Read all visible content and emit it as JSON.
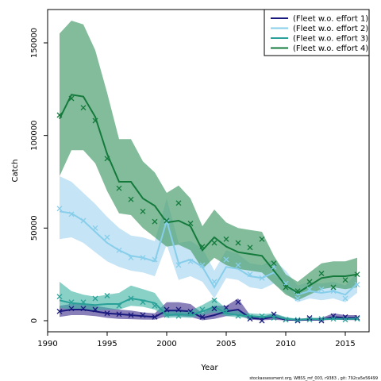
{
  "chart_data": {
    "type": "line",
    "xlabel": "Year",
    "ylabel": "Catch",
    "xlim": [
      1990,
      2017
    ],
    "ylim": [
      -6000,
      168000
    ],
    "xticks": [
      1990,
      1995,
      2000,
      2005,
      2010,
      2015
    ],
    "yticks": [
      0,
      50000,
      100000,
      150000
    ],
    "legend_position": "top-right",
    "footer_text": "stockassessment.org, WBSS_mf_003, r9383 , git: 792ca5e56499",
    "series": [
      {
        "name": "(Fleet w.o. effort 1)",
        "color": "#1a1a7e",
        "band_color": "#3b2a8a",
        "x": [
          1991,
          1992,
          1993,
          1994,
          1995,
          1996,
          1997,
          1998,
          1999,
          2000,
          2001,
          2002,
          2003,
          2004,
          2005,
          2006,
          2007,
          2008,
          2009,
          2010,
          2011,
          2012,
          2013,
          2014,
          2015,
          2016
        ],
        "fit": [
          5000,
          6000,
          6000,
          5000,
          4000,
          3500,
          3000,
          2500,
          2000,
          5500,
          5500,
          5000,
          1500,
          3000,
          5000,
          6000,
          1500,
          1000,
          2000,
          500,
          300,
          500,
          500,
          2000,
          1500,
          1500
        ],
        "lower": [
          2000,
          3000,
          3000,
          2500,
          1500,
          1000,
          800,
          600,
          500,
          2500,
          2500,
          2000,
          200,
          1000,
          2500,
          3000,
          500,
          200,
          500,
          100,
          50,
          100,
          100,
          500,
          300,
          300
        ],
        "upper": [
          8000,
          9000,
          9000,
          8000,
          7000,
          6000,
          5500,
          4500,
          4000,
          10000,
          10000,
          9000,
          4000,
          8000,
          8000,
          12000,
          3000,
          2000,
          4000,
          1500,
          1000,
          1500,
          1500,
          4000,
          3000,
          3000
        ],
        "obs": [
          5000,
          6500,
          6500,
          6000,
          4000,
          3500,
          3000,
          3000,
          2000,
          6000,
          6000,
          5000,
          2000,
          6500,
          7000,
          10000,
          1000,
          0,
          3500,
          500,
          0,
          1500,
          0,
          2500,
          2000,
          1500
        ]
      },
      {
        "name": "(Fleet w.o. effort 2)",
        "color": "#87ceeb",
        "band_color": "#9fd2ee",
        "x": [
          1991,
          1992,
          1993,
          1994,
          1995,
          1996,
          1997,
          1998,
          1999,
          2000,
          2001,
          2002,
          2003,
          2004,
          2005,
          2006,
          2007,
          2008,
          2009,
          2010,
          2011,
          2012,
          2013,
          2014,
          2015,
          2016
        ],
        "fit": [
          59000,
          58000,
          54000,
          48000,
          42000,
          38000,
          35000,
          34000,
          32000,
          54000,
          31000,
          33000,
          29000,
          18000,
          29000,
          28000,
          24000,
          23000,
          26000,
          20000,
          14000,
          16000,
          15000,
          16000,
          14000,
          20000
        ],
        "lower": [
          44000,
          45000,
          42000,
          37000,
          32000,
          29000,
          27000,
          26000,
          24000,
          41000,
          22000,
          24000,
          21000,
          12000,
          23000,
          22000,
          18000,
          17000,
          20000,
          15000,
          10000,
          12000,
          11000,
          12000,
          10000,
          15000
        ],
        "upper": [
          78000,
          75000,
          69000,
          63000,
          56000,
          50000,
          46000,
          45000,
          43000,
          66000,
          42000,
          43000,
          39000,
          27000,
          38000,
          36000,
          31000,
          30000,
          33000,
          27000,
          19000,
          21000,
          20000,
          21000,
          19000,
          26000
        ],
        "obs": [
          60500,
          57500,
          54000,
          50000,
          45000,
          38000,
          34000,
          34000,
          33000,
          53000,
          30000,
          32000,
          30000,
          21000,
          33000,
          30000,
          25000,
          23000,
          29000,
          20000,
          12000,
          17000,
          17000,
          16000,
          12000,
          19500
        ]
      },
      {
        "name": "(Fleet w.o. effort 3)",
        "color": "#2aa198",
        "band_color": "#3ab0a2",
        "x": [
          1991,
          1992,
          1993,
          1994,
          1995,
          1996,
          1997,
          1998,
          1999,
          2000,
          2001,
          2002,
          2003,
          2004,
          2005,
          2006,
          2007,
          2008,
          2009,
          2010,
          2011,
          2012,
          2013,
          2014,
          2015,
          2016
        ],
        "fit": [
          11000,
          9500,
          9000,
          8500,
          9000,
          9000,
          12000,
          11000,
          9500,
          3000,
          3500,
          3000,
          5000,
          7500,
          4000,
          3000,
          2500,
          2000,
          2500,
          1000,
          500,
          800,
          800,
          1000,
          1000,
          1000
        ],
        "lower": [
          7000,
          6000,
          5500,
          5500,
          6000,
          6000,
          8000,
          7500,
          6000,
          1500,
          1800,
          1500,
          3000,
          4500,
          2500,
          1800,
          1500,
          1000,
          1500,
          500,
          200,
          400,
          400,
          500,
          500,
          500
        ],
        "upper": [
          21000,
          16000,
          14000,
          13000,
          14000,
          15000,
          19000,
          17000,
          15000,
          6000,
          6000,
          5500,
          8500,
          12000,
          6500,
          5000,
          4000,
          3500,
          4000,
          2000,
          1000,
          1500,
          1500,
          2000,
          2000,
          2000
        ],
        "obs": [
          13000,
          10000,
          10000,
          12000,
          13500,
          8000,
          12000,
          10000,
          8000,
          3000,
          2500,
          4000,
          6000,
          11000,
          5000,
          2500,
          2000,
          2500,
          1500,
          500,
          500,
          500,
          1000,
          1000,
          500,
          1000
        ]
      },
      {
        "name": "(Fleet w.o. effort 4)",
        "color": "#137a3c",
        "band_color": "#4f9f6f",
        "x": [
          1991,
          1992,
          1993,
          1994,
          1995,
          1996,
          1997,
          1998,
          1999,
          2000,
          2001,
          2002,
          2003,
          2004,
          2005,
          2006,
          2007,
          2008,
          2009,
          2010,
          2011,
          2012,
          2013,
          2014,
          2015,
          2016
        ],
        "fit": [
          109000,
          122000,
          121000,
          110000,
          90000,
          75000,
          75000,
          66000,
          62000,
          53000,
          54000,
          51000,
          38000,
          45000,
          40000,
          37000,
          36000,
          35000,
          27000,
          19000,
          15000,
          19000,
          23000,
          24000,
          24000,
          25000
        ],
        "lower": [
          78000,
          92000,
          92000,
          85000,
          70000,
          58000,
          57000,
          50000,
          45000,
          40000,
          41000,
          38000,
          28000,
          34000,
          30000,
          28000,
          27000,
          26000,
          20000,
          14000,
          11000,
          14000,
          17000,
          18000,
          17000,
          18000
        ],
        "upper": [
          155000,
          162000,
          160000,
          146000,
          123000,
          98000,
          98000,
          86000,
          80000,
          69000,
          73000,
          66000,
          51000,
          60000,
          53000,
          50000,
          49000,
          48000,
          35000,
          25000,
          21000,
          26000,
          31000,
          32000,
          32000,
          34000
        ],
        "obs": [
          111000,
          120000,
          115000,
          108000,
          87500,
          71500,
          65500,
          59000,
          53500,
          54000,
          63500,
          52500,
          40000,
          42000,
          44000,
          42000,
          39500,
          44000,
          31000,
          18000,
          16000,
          21000,
          25500,
          18000,
          22000,
          25000
        ]
      }
    ]
  }
}
